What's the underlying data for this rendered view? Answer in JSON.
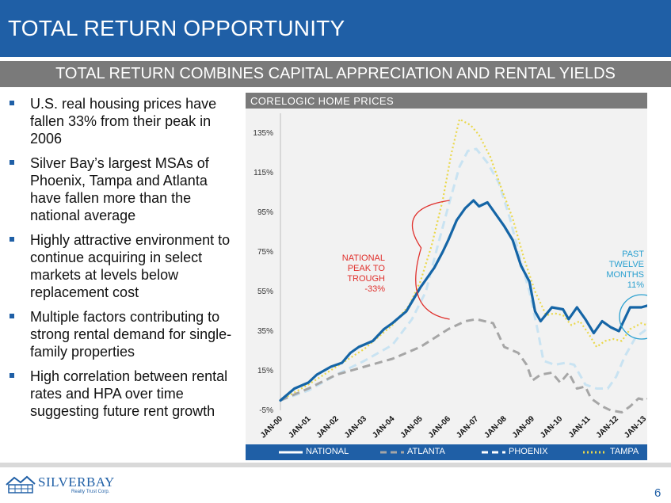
{
  "header": {
    "title": "TOTAL RETURN OPPORTUNITY"
  },
  "subheader": {
    "text": "TOTAL RETURN COMBINES CAPITAL APPRECIATION AND RENTAL YIELDS"
  },
  "bullets": [
    "U.S. real housing prices have fallen 33% from their peak in 2006",
    "Silver Bay’s largest MSAs of Phoenix, Tampa and Atlanta have fallen more than the national average",
    "Highly attractive environment to continue acquiring in select markets at levels below replacement cost",
    "Multiple factors contributing to strong rental demand for single-family properties",
    "High correlation between rental rates and HPA over time suggesting future rent growth"
  ],
  "chart_data": {
    "type": "line",
    "title": "CORELOGIC HOME PRICES",
    "x_tick_labels": [
      "JAN-00",
      "JAN-01",
      "JAN-02",
      "JAN-03",
      "JAN-04",
      "JAN-05",
      "JAN-06",
      "JAN-07",
      "JAN-08",
      "JAN-09",
      "JAN-10",
      "JAN-11",
      "JAN-12",
      "JAN-13"
    ],
    "y_tick_labels": [
      "-5%",
      "15%",
      "35%",
      "55%",
      "75%",
      "95%",
      "115%",
      "135%"
    ],
    "ylim": [
      -5,
      145
    ],
    "xlim": [
      2000.0,
      2013.45
    ],
    "series": [
      {
        "name": "NATIONAL",
        "color": "#1565a6",
        "style": "solid",
        "points": [
          [
            2000.0,
            0
          ],
          [
            2000.5,
            6
          ],
          [
            2001.0,
            9
          ],
          [
            2001.3,
            13
          ],
          [
            2001.8,
            17
          ],
          [
            2002.2,
            19
          ],
          [
            2002.5,
            24
          ],
          [
            2002.8,
            27
          ],
          [
            2003.3,
            30
          ],
          [
            2003.7,
            36
          ],
          [
            2004.0,
            39
          ],
          [
            2004.5,
            45
          ],
          [
            2005.0,
            57
          ],
          [
            2005.5,
            67
          ],
          [
            2005.8,
            75
          ],
          [
            2006.0,
            81
          ],
          [
            2006.3,
            91
          ],
          [
            2006.6,
            97
          ],
          [
            2006.9,
            101
          ],
          [
            2007.1,
            98
          ],
          [
            2007.4,
            100
          ],
          [
            2007.7,
            94
          ],
          [
            2008.0,
            88
          ],
          [
            2008.3,
            81
          ],
          [
            2008.6,
            68
          ],
          [
            2008.9,
            60
          ],
          [
            2009.1,
            45
          ],
          [
            2009.3,
            40
          ],
          [
            2009.7,
            47
          ],
          [
            2010.1,
            46
          ],
          [
            2010.3,
            41
          ],
          [
            2010.6,
            47
          ],
          [
            2010.9,
            41
          ],
          [
            2011.2,
            34
          ],
          [
            2011.5,
            40
          ],
          [
            2011.8,
            37
          ],
          [
            2012.1,
            35
          ],
          [
            2012.5,
            47
          ],
          [
            2012.9,
            47
          ],
          [
            2013.15,
            48
          ],
          [
            2013.35,
            52
          ]
        ]
      },
      {
        "name": "ATLANTA",
        "color": "#a6a6a6",
        "style": "dashed",
        "points": [
          [
            2000.0,
            0
          ],
          [
            2001.0,
            6
          ],
          [
            2002.0,
            13
          ],
          [
            2003.0,
            17
          ],
          [
            2004.0,
            21
          ],
          [
            2005.0,
            27
          ],
          [
            2006.0,
            36
          ],
          [
            2006.6,
            40
          ],
          [
            2007.0,
            41
          ],
          [
            2007.6,
            39
          ],
          [
            2008.0,
            27
          ],
          [
            2008.5,
            24
          ],
          [
            2008.8,
            18
          ],
          [
            2009.0,
            10
          ],
          [
            2009.3,
            13
          ],
          [
            2009.7,
            14
          ],
          [
            2010.0,
            9
          ],
          [
            2010.3,
            14
          ],
          [
            2010.6,
            6
          ],
          [
            2010.9,
            7
          ],
          [
            2011.1,
            1
          ],
          [
            2011.5,
            -3
          ],
          [
            2011.8,
            -5
          ],
          [
            2012.2,
            -6
          ],
          [
            2012.5,
            -3
          ],
          [
            2012.8,
            1
          ],
          [
            2013.1,
            0
          ],
          [
            2013.35,
            6
          ]
        ]
      },
      {
        "name": "PHOENIX",
        "color": "#c9e3f2",
        "style": "dashed",
        "points": [
          [
            2000.0,
            0
          ],
          [
            2001.0,
            5
          ],
          [
            2002.0,
            13
          ],
          [
            2003.0,
            20
          ],
          [
            2004.0,
            28
          ],
          [
            2004.7,
            41
          ],
          [
            2005.2,
            55
          ],
          [
            2005.6,
            77
          ],
          [
            2006.0,
            98
          ],
          [
            2006.4,
            118
          ],
          [
            2006.7,
            126
          ],
          [
            2007.0,
            127
          ],
          [
            2007.4,
            120
          ],
          [
            2007.8,
            110
          ],
          [
            2008.2,
            92
          ],
          [
            2008.6,
            70
          ],
          [
            2008.9,
            55
          ],
          [
            2009.2,
            35
          ],
          [
            2009.4,
            20
          ],
          [
            2009.8,
            18
          ],
          [
            2010.2,
            19
          ],
          [
            2010.5,
            18
          ],
          [
            2010.9,
            8
          ],
          [
            2011.3,
            6
          ],
          [
            2011.7,
            6
          ],
          [
            2012.0,
            12
          ],
          [
            2012.3,
            22
          ],
          [
            2012.7,
            32
          ],
          [
            2013.0,
            35
          ],
          [
            2013.35,
            40
          ]
        ]
      },
      {
        "name": "TAMPA",
        "color": "#ead84c",
        "style": "dotted",
        "points": [
          [
            2000.0,
            0
          ],
          [
            2001.0,
            8
          ],
          [
            2002.0,
            17
          ],
          [
            2003.0,
            26
          ],
          [
            2004.0,
            38
          ],
          [
            2004.6,
            48
          ],
          [
            2005.0,
            60
          ],
          [
            2005.4,
            78
          ],
          [
            2005.8,
            101
          ],
          [
            2006.1,
            124
          ],
          [
            2006.4,
            142
          ],
          [
            2006.8,
            139
          ],
          [
            2007.1,
            134
          ],
          [
            2007.5,
            123
          ],
          [
            2007.9,
            107
          ],
          [
            2008.3,
            92
          ],
          [
            2008.7,
            72
          ],
          [
            2009.1,
            55
          ],
          [
            2009.5,
            43
          ],
          [
            2009.8,
            44
          ],
          [
            2010.1,
            43
          ],
          [
            2010.4,
            38
          ],
          [
            2010.7,
            40
          ],
          [
            2011.0,
            34
          ],
          [
            2011.3,
            27
          ],
          [
            2011.6,
            30
          ],
          [
            2011.9,
            31
          ],
          [
            2012.2,
            30
          ],
          [
            2012.5,
            36
          ],
          [
            2012.9,
            39
          ],
          [
            2013.1,
            38
          ],
          [
            2013.35,
            42
          ]
        ]
      }
    ],
    "annotations": [
      {
        "lines": [
          "NATIONAL",
          "PEAK TO",
          "TROUGH",
          "-33%"
        ],
        "color": "#e0302c"
      },
      {
        "lines": [
          "PAST",
          "TWELVE",
          "MONTHS",
          "11%"
        ],
        "color": "#2aa0d0"
      }
    ],
    "legend": "bottom",
    "grid": false
  },
  "footer": {
    "logo_text": "SILVERBAY",
    "logo_subtext": "Realty Trust Corp.",
    "page_number": "6"
  }
}
